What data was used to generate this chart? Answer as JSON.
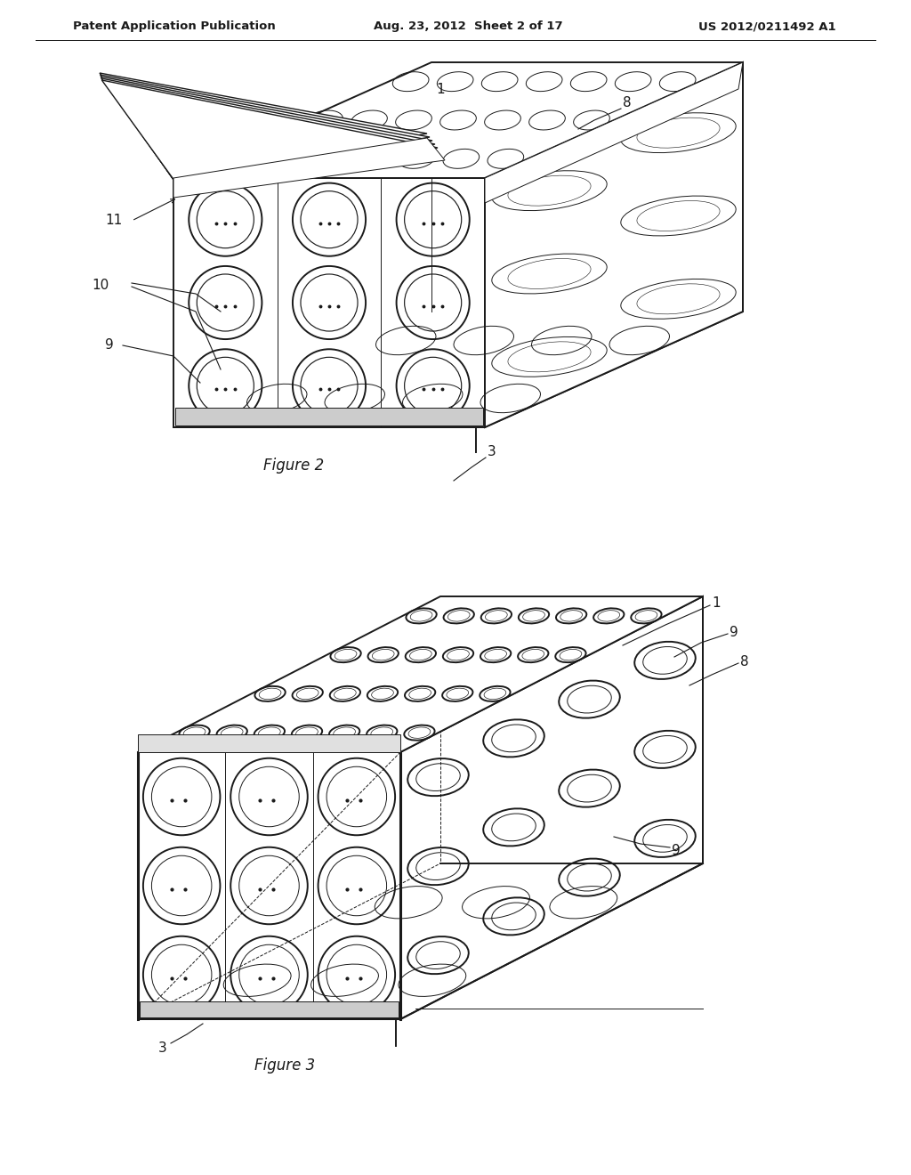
{
  "bg_color": "#ffffff",
  "lc": "#1a1a1a",
  "header_left": "Patent Application Publication",
  "header_center": "Aug. 23, 2012  Sheet 2 of 17",
  "header_right": "US 2012/0211492 A1",
  "fig2_caption": "Figure 2",
  "fig3_caption": "Figure 3",
  "lw_main": 1.4,
  "lw_thin": 0.7,
  "lw_thick": 2.2,
  "lw_lid": 1.0
}
